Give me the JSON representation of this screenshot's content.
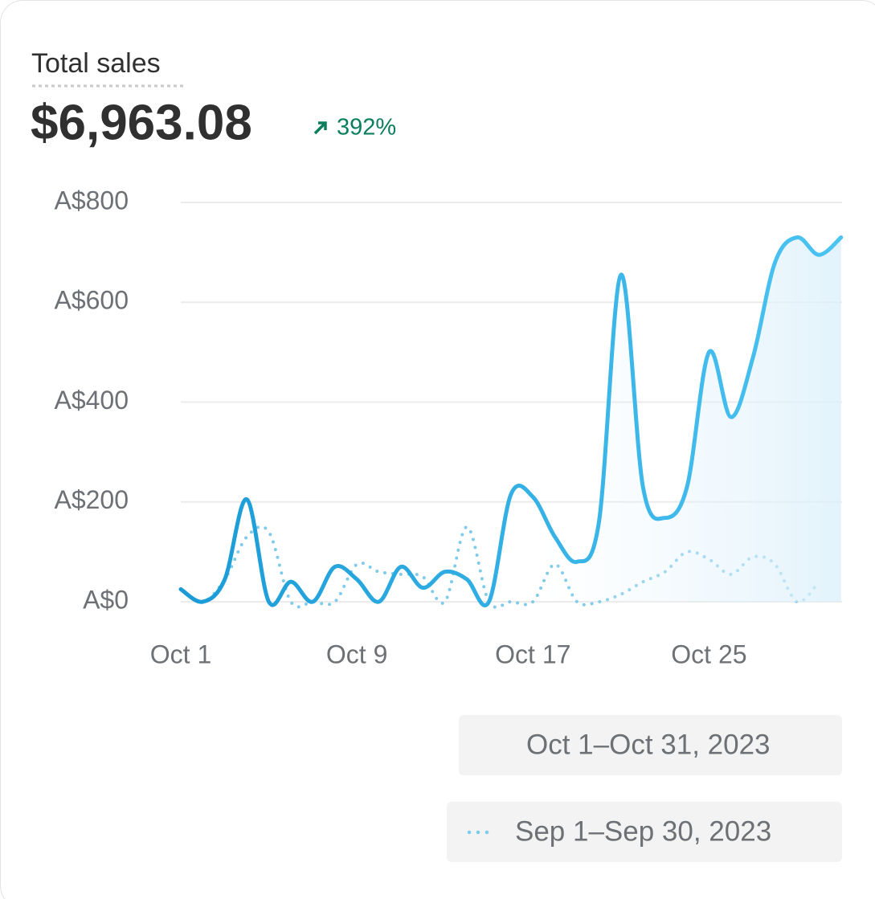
{
  "header": {
    "title": "Total sales",
    "total": "$6,963.08",
    "change": "392%"
  },
  "chart_data": {
    "type": "line",
    "categories": [
      "Oct 1",
      null,
      null,
      null,
      null,
      null,
      null,
      null,
      "Oct 9",
      null,
      null,
      null,
      null,
      null,
      null,
      null,
      "Oct 17",
      null,
      null,
      null,
      null,
      null,
      null,
      null,
      "Oct 25",
      null,
      null,
      null,
      null,
      null,
      null
    ],
    "series": [
      {
        "name": "Oct 1–Oct 31, 2023",
        "color": "#1fa3dc",
        "style": "solid",
        "values": [
          25,
          0,
          45,
          205,
          0,
          40,
          0,
          70,
          45,
          0,
          70,
          28,
          60,
          45,
          0,
          215,
          210,
          130,
          80,
          160,
          655,
          230,
          168,
          230,
          500,
          370,
          490,
          680,
          730,
          695,
          730
        ]
      },
      {
        "name": "Sep 1–Sep 30, 2023",
        "color": "#7fcbea",
        "style": "dotted",
        "values": [
          25,
          0,
          45,
          130,
          140,
          0,
          0,
          0,
          75,
          60,
          55,
          50,
          0,
          150,
          0,
          0,
          0,
          75,
          0,
          0,
          15,
          40,
          60,
          100,
          85,
          55,
          90,
          75,
          0,
          40,
          null
        ]
      }
    ],
    "ylim": [
      0,
      800
    ],
    "yticks": [
      {
        "value": 0,
        "label": "A$0"
      },
      {
        "value": 200,
        "label": "A$200"
      },
      {
        "value": 400,
        "label": "A$400"
      },
      {
        "value": 600,
        "label": "A$600"
      },
      {
        "value": 800,
        "label": "A$800"
      }
    ],
    "grid": true
  }
}
